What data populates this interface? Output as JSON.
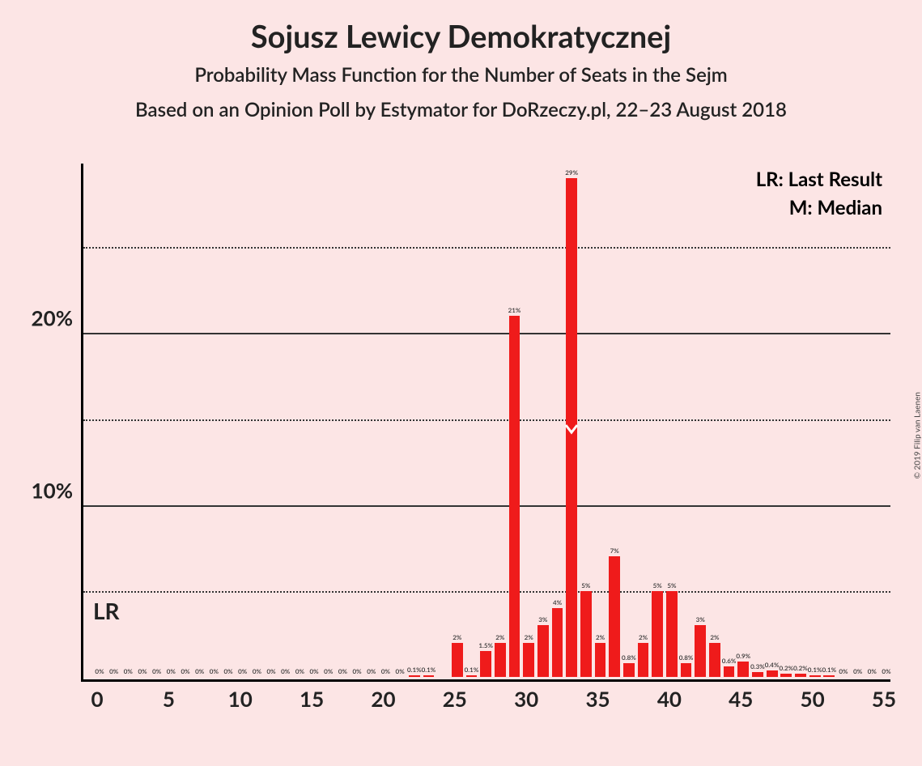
{
  "title": "Sojusz Lewicy Demokratycznej",
  "subtitle1": "Probability Mass Function for the Number of Seats in the Sejm",
  "subtitle2": "Based on an Opinion Poll by Estymator for DoRzeczy.pl, 22–23 August 2018",
  "copyright": "© 2019 Filip van Laenen",
  "legend": {
    "lr": "LR: Last Result",
    "m": "M: Median"
  },
  "lr_label": "LR",
  "chart": {
    "type": "bar",
    "background_color": "#fce5e5",
    "bar_color": "#ef1b1b",
    "axis_color": "#000000",
    "grid_color": "#333333",
    "x_min": 0,
    "x_max": 55,
    "y_max": 30,
    "y_ticks": [
      5,
      10,
      15,
      20,
      25
    ],
    "y_tick_labels": [
      "",
      "10%",
      "",
      "20%",
      ""
    ],
    "x_ticks": [
      0,
      5,
      10,
      15,
      20,
      25,
      30,
      35,
      40,
      45,
      50,
      55
    ],
    "bar_width_ratio": 0.78,
    "lr_x": 0,
    "median_x": 33,
    "bars": [
      {
        "x": 0,
        "y": 0,
        "label": "0%"
      },
      {
        "x": 1,
        "y": 0,
        "label": "0%"
      },
      {
        "x": 2,
        "y": 0,
        "label": "0%"
      },
      {
        "x": 3,
        "y": 0,
        "label": "0%"
      },
      {
        "x": 4,
        "y": 0,
        "label": "0%"
      },
      {
        "x": 5,
        "y": 0,
        "label": "0%"
      },
      {
        "x": 6,
        "y": 0,
        "label": "0%"
      },
      {
        "x": 7,
        "y": 0,
        "label": "0%"
      },
      {
        "x": 8,
        "y": 0,
        "label": "0%"
      },
      {
        "x": 9,
        "y": 0,
        "label": "0%"
      },
      {
        "x": 10,
        "y": 0,
        "label": "0%"
      },
      {
        "x": 11,
        "y": 0,
        "label": "0%"
      },
      {
        "x": 12,
        "y": 0,
        "label": "0%"
      },
      {
        "x": 13,
        "y": 0,
        "label": "0%"
      },
      {
        "x": 14,
        "y": 0,
        "label": "0%"
      },
      {
        "x": 15,
        "y": 0,
        "label": "0%"
      },
      {
        "x": 16,
        "y": 0,
        "label": "0%"
      },
      {
        "x": 17,
        "y": 0,
        "label": "0%"
      },
      {
        "x": 18,
        "y": 0,
        "label": "0%"
      },
      {
        "x": 19,
        "y": 0,
        "label": "0%"
      },
      {
        "x": 20,
        "y": 0,
        "label": "0%"
      },
      {
        "x": 21,
        "y": 0,
        "label": "0%"
      },
      {
        "x": 22,
        "y": 0.1,
        "label": "0.1%"
      },
      {
        "x": 23,
        "y": 0.1,
        "label": "0.1%"
      },
      {
        "x": 24,
        "y": 0,
        "label": ""
      },
      {
        "x": 25,
        "y": 2,
        "label": "2%"
      },
      {
        "x": 26,
        "y": 0.1,
        "label": "0.1%"
      },
      {
        "x": 27,
        "y": 1.5,
        "label": "1.5%"
      },
      {
        "x": 28,
        "y": 2,
        "label": "2%"
      },
      {
        "x": 29,
        "y": 21,
        "label": "21%"
      },
      {
        "x": 30,
        "y": 2,
        "label": "2%"
      },
      {
        "x": 31,
        "y": 3,
        "label": "3%"
      },
      {
        "x": 32,
        "y": 4,
        "label": "4%"
      },
      {
        "x": 33,
        "y": 29,
        "label": "29%"
      },
      {
        "x": 34,
        "y": 5,
        "label": "5%"
      },
      {
        "x": 35,
        "y": 2,
        "label": "2%"
      },
      {
        "x": 36,
        "y": 7,
        "label": "7%"
      },
      {
        "x": 37,
        "y": 0.8,
        "label": "0.8%"
      },
      {
        "x": 38,
        "y": 2,
        "label": "2%"
      },
      {
        "x": 39,
        "y": 5,
        "label": "5%"
      },
      {
        "x": 40,
        "y": 5,
        "label": "5%"
      },
      {
        "x": 41,
        "y": 0.8,
        "label": "0.8%"
      },
      {
        "x": 42,
        "y": 3,
        "label": "3%"
      },
      {
        "x": 43,
        "y": 2,
        "label": "2%"
      },
      {
        "x": 44,
        "y": 0.6,
        "label": "0.6%"
      },
      {
        "x": 45,
        "y": 0.9,
        "label": "0.9%"
      },
      {
        "x": 46,
        "y": 0.3,
        "label": "0.3%"
      },
      {
        "x": 47,
        "y": 0.4,
        "label": "0.4%"
      },
      {
        "x": 48,
        "y": 0.2,
        "label": "0.2%"
      },
      {
        "x": 49,
        "y": 0.2,
        "label": "0.2%"
      },
      {
        "x": 50,
        "y": 0.1,
        "label": "0.1%"
      },
      {
        "x": 51,
        "y": 0.1,
        "label": "0.1%"
      },
      {
        "x": 52,
        "y": 0,
        "label": "0%"
      },
      {
        "x": 53,
        "y": 0,
        "label": "0%"
      },
      {
        "x": 54,
        "y": 0,
        "label": "0%"
      },
      {
        "x": 55,
        "y": 0,
        "label": "0%"
      }
    ]
  }
}
